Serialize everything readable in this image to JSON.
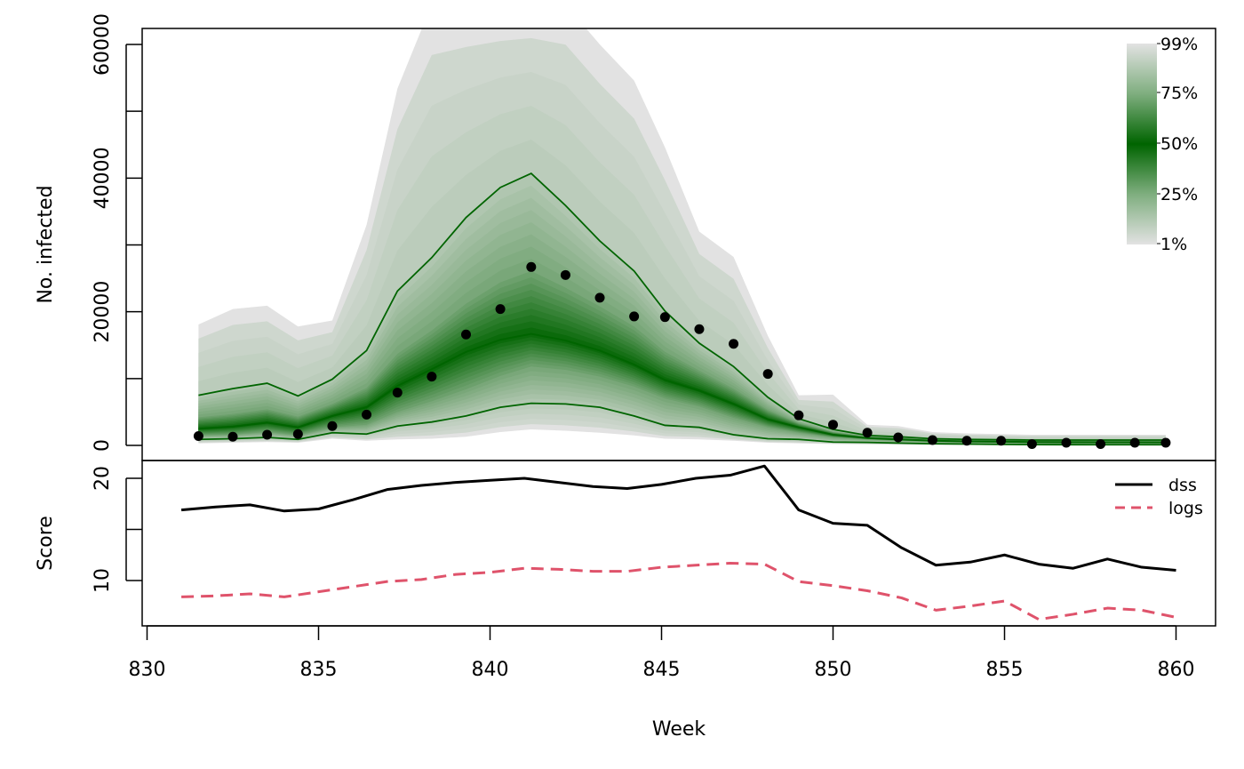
{
  "chart_data": [
    {
      "type": "area",
      "panel": "forecast-fan",
      "ylabel": "No. infected",
      "ylim": [
        0,
        62000
      ],
      "y_ticks": [
        0,
        20000,
        40000,
        60000
      ],
      "y_tick_labels": [
        "0",
        "20000",
        "40000",
        "60000"
      ],
      "y_minor_ticks": [
        10000,
        30000,
        50000
      ],
      "weeks": [
        831.5,
        832.5,
        833.5,
        834.4,
        835.4,
        836.4,
        837.3,
        838.3,
        839.3,
        840.3,
        841.2,
        842.2,
        843.2,
        844.2,
        845.1,
        846.1,
        847.1,
        848.1,
        849.0,
        850.0,
        851.0,
        851.9,
        852.9,
        853.9,
        854.9,
        855.8,
        856.8,
        857.8,
        858.8,
        859.7
      ],
      "observed": [
        1400,
        1300,
        1600,
        1700,
        2900,
        4600,
        7900,
        10300,
        16600,
        20400,
        26700,
        25500,
        22100,
        19300,
        19200,
        17400,
        15200,
        10700,
        4500,
        3100,
        1900,
        1200,
        800,
        700,
        700,
        200,
        400,
        200,
        400,
        400
      ],
      "band_legend_labels": [
        "99%",
        "75%",
        "50%",
        "25%",
        "1%"
      ],
      "bands": [
        {
          "name": "1%-99%",
          "lower": [
            300,
            400,
            500,
            400,
            1000,
            700,
            900,
            1000,
            1300,
            2000,
            2400,
            2200,
            1900,
            1500,
            1000,
            900,
            700,
            400,
            300,
            200,
            150,
            100,
            80,
            60,
            50,
            40,
            40,
            30,
            30,
            30
          ],
          "upper": [
            18100,
            20400,
            20900,
            17800,
            18700,
            33000,
            53400,
            66000,
            66000,
            66000,
            66000,
            66000,
            60000,
            54600,
            44600,
            32000,
            28200,
            16400,
            7500,
            7600,
            3100,
            2900,
            2000,
            1800,
            1700,
            1600,
            1600,
            1600,
            1600,
            1600
          ]
        },
        {
          "name": "10%-90%",
          "lower": [
            900,
            1000,
            1200,
            900,
            1900,
            1700,
            2900,
            3500,
            4400,
            5700,
            6300,
            6200,
            5700,
            4400,
            3000,
            2700,
            1600,
            1000,
            900,
            500,
            450,
            350,
            250,
            200,
            150,
            120,
            110,
            100,
            100,
            100
          ],
          "upper": [
            7500,
            8500,
            9300,
            7400,
            9900,
            14200,
            23100,
            28100,
            34100,
            38600,
            40700,
            35900,
            30600,
            26100,
            20100,
            15300,
            11800,
            7200,
            4000,
            2400,
            1500,
            1300,
            1000,
            900,
            850,
            800,
            800,
            800,
            800,
            800
          ]
        },
        {
          "name": "25%-75%",
          "lower": [
            1500,
            1600,
            2000,
            1500,
            2700,
            3100,
            5000,
            6600,
            8400,
            10400,
            11800,
            11300,
            10300,
            8800,
            7000,
            5800,
            4100,
            2700,
            1900,
            1200,
            900,
            700,
            550,
            450,
            400,
            350,
            330,
            320,
            310,
            300
          ],
          "upper": [
            4200,
            4700,
            5400,
            4300,
            6200,
            8600,
            13700,
            17200,
            21200,
            24400,
            26100,
            23600,
            20800,
            17800,
            14000,
            11200,
            8500,
            5300,
            3300,
            2000,
            1300,
            1100,
            850,
            750,
            700,
            650,
            650,
            640,
            630,
            620
          ]
        }
      ],
      "median": [
        2500,
        2800,
        3400,
        2700,
        4400,
        5700,
        8900,
        11400,
        14000,
        15800,
        16700,
        15700,
        14200,
        12100,
        9800,
        8200,
        6200,
        3900,
        2700,
        1600,
        1100,
        900,
        700,
        600,
        550,
        500,
        480,
        470,
        460,
        450
      ],
      "colors": {
        "outer": "#e2e2e2",
        "center": "#006400",
        "observed": "#000000"
      }
    },
    {
      "type": "line",
      "panel": "scores",
      "xlabel": "Week",
      "ylabel": "Score",
      "xlim": [
        830,
        860
      ],
      "x_ticks": [
        830,
        835,
        840,
        845,
        850,
        855,
        860
      ],
      "y_ticks": [
        10,
        20
      ],
      "y_tick_labels": [
        "10",
        "20"
      ],
      "y_minor_ticks": [
        15
      ],
      "ylim": [
        6,
        21.2
      ],
      "legend_position": "top-right",
      "x": [
        831,
        832,
        833,
        834,
        835,
        836,
        837,
        838,
        839,
        840,
        841,
        842,
        843,
        844,
        845,
        846,
        847,
        848,
        849,
        850,
        851,
        852,
        853,
        854,
        855,
        856,
        857,
        858,
        859,
        860
      ],
      "series": [
        {
          "name": "dss",
          "color": "#000000",
          "dash": "solid",
          "values": [
            16.9,
            17.2,
            17.4,
            16.8,
            17.0,
            17.9,
            18.9,
            19.3,
            19.6,
            19.8,
            20.0,
            19.6,
            19.2,
            19.0,
            19.4,
            20.0,
            20.3,
            21.2,
            16.9,
            15.6,
            15.4,
            13.2,
            11.5,
            11.8,
            12.5,
            11.6,
            11.2,
            12.1,
            11.3,
            11.0
          ]
        },
        {
          "name": "logs",
          "color": "#df536b",
          "dash": "dashed",
          "values": [
            8.4,
            8.5,
            8.7,
            8.4,
            8.9,
            9.4,
            9.9,
            10.1,
            10.6,
            10.8,
            11.2,
            11.1,
            10.9,
            10.9,
            11.3,
            11.5,
            11.7,
            11.6,
            9.9,
            9.5,
            9.0,
            8.3,
            7.1,
            7.5,
            8.0,
            6.2,
            6.7,
            7.3,
            7.1,
            6.4
          ]
        }
      ]
    }
  ]
}
